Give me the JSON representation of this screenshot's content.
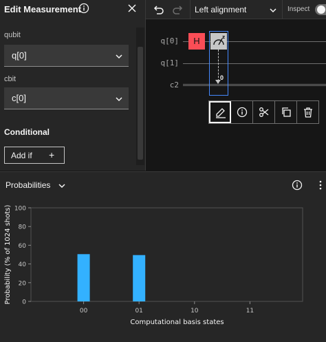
{
  "edit_panel": {
    "title": "Edit Measurement",
    "qubit_label": "qubit",
    "qubit_value": "q[0]",
    "cbit_label": "cbit",
    "cbit_value": "c[0]",
    "conditional_title": "Conditional",
    "add_if_label": "Add if",
    "add_if_icon": "+"
  },
  "toolbar": {
    "alignment": "Left alignment",
    "inspect_label": "Inspect",
    "inspect_on": false
  },
  "circuit": {
    "qubits": [
      "q[0]",
      "q[1]"
    ],
    "cbits": [
      "c2"
    ],
    "gates": [
      {
        "name": "H",
        "qubit": "q[0]",
        "color": "#fa4d56"
      },
      {
        "name": "measure",
        "qubit": "q[0]",
        "cbit": "c2",
        "bit": "0"
      }
    ],
    "measure_bit": "0",
    "gate_actions": [
      "edit-icon",
      "info-icon",
      "cut-icon",
      "copy-icon",
      "trash-icon"
    ]
  },
  "probabilities": {
    "title": "Probabilities"
  },
  "chart_data": {
    "type": "bar",
    "categories": [
      "00",
      "01",
      "10",
      "11"
    ],
    "values": [
      50.5,
      49.5,
      0,
      0
    ],
    "xlabel": "Computational basis states",
    "ylabel": "Probability (% of 1024 shots)",
    "ylim": [
      0,
      100
    ],
    "yticks": [
      0,
      20,
      40,
      60,
      80,
      100
    ],
    "bar_color": "#33b1ff",
    "grid": false
  }
}
